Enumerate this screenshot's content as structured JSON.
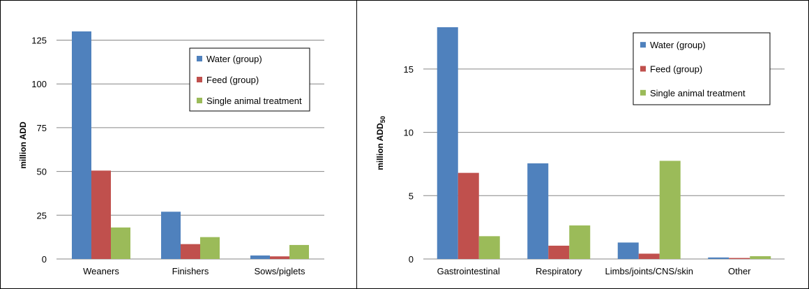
{
  "chart_data": [
    {
      "type": "bar",
      "ylabel": "million ADD",
      "categories": [
        "Weaners",
        "Finishers",
        "Sows/piglets"
      ],
      "series": [
        {
          "name": "Water (group)",
          "color": "#4F81BD",
          "values": [
            130,
            27,
            2
          ]
        },
        {
          "name": "Feed (group)",
          "color": "#C0504D",
          "values": [
            50.5,
            8.5,
            1.5
          ]
        },
        {
          "name": "Single animal treatment",
          "color": "#9BBB59",
          "values": [
            18,
            12.5,
            8
          ]
        }
      ],
      "ylim": [
        0,
        130
      ],
      "yticks": [
        0,
        25,
        50,
        75,
        100,
        125
      ],
      "grid": true,
      "legend": "top-right"
    },
    {
      "type": "bar",
      "ylabel": "million ADD",
      "ylabel_sub": "50",
      "categories": [
        "Gastrointestinal",
        "Respiratory",
        "Limbs/joints/CNS/skin",
        "Other"
      ],
      "series": [
        {
          "name": "Water (group)",
          "color": "#4F81BD",
          "values": [
            18.3,
            7.55,
            1.3,
            0.12
          ]
        },
        {
          "name": "Feed (group)",
          "color": "#C0504D",
          "values": [
            6.8,
            1.05,
            0.42,
            0.08
          ]
        },
        {
          "name": "Single animal treatment",
          "color": "#9BBB59",
          "values": [
            1.8,
            2.65,
            7.75,
            0.22
          ]
        }
      ],
      "ylim": [
        0,
        18.3
      ],
      "yticks": [
        0,
        5,
        10,
        15
      ],
      "grid": true,
      "legend": "top-right"
    }
  ]
}
